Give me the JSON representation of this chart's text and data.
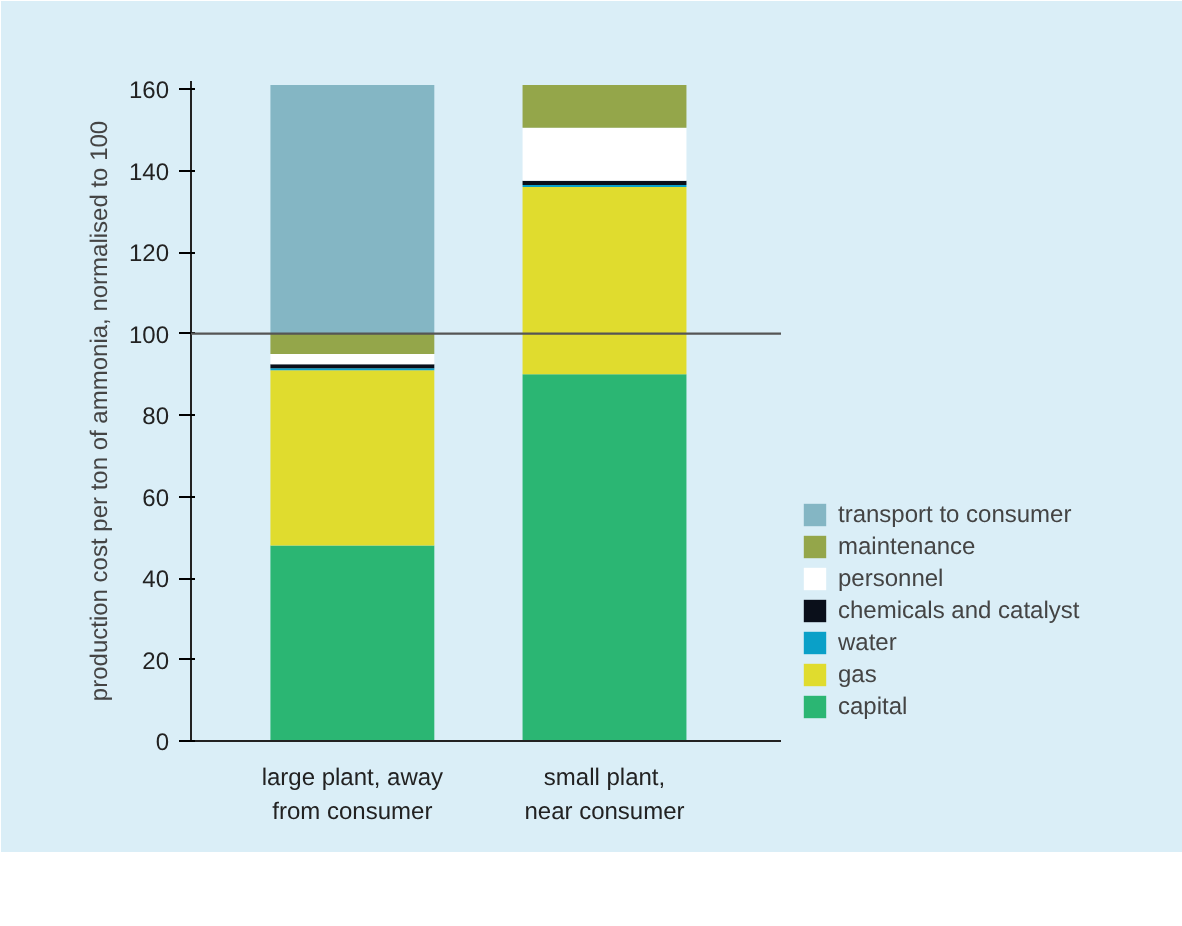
{
  "chart_data": {
    "type": "bar",
    "stacked": true,
    "ylabel": "production cost per ton of ammonia, normalised to 100",
    "categories": [
      "large plant, away\nfrom consumer",
      "small plant,\nnear consumer"
    ],
    "series": [
      {
        "name": "capital",
        "color": "#2bb673",
        "values": [
          48,
          90
        ]
      },
      {
        "name": "gas",
        "color": "#e0dc2e",
        "values": [
          43,
          46
        ]
      },
      {
        "name": "water",
        "color": "#0aa0c8",
        "values": [
          0.5,
          0.5
        ]
      },
      {
        "name": "chemicals and catalyst",
        "color": "#0a0f1a",
        "values": [
          1,
          1
        ]
      },
      {
        "name": "personnel",
        "color": "#ffffff",
        "values": [
          2.5,
          13
        ]
      },
      {
        "name": "maintenance",
        "color": "#94a64a",
        "values": [
          5,
          10.5
        ]
      },
      {
        "name": "transport to consumer",
        "color": "#84b6c4",
        "values": [
          61,
          0
        ]
      }
    ],
    "ylim": [
      0,
      162
    ],
    "yticks": [
      0,
      20,
      40,
      60,
      80,
      100,
      120,
      140,
      160
    ],
    "ref_lines": [
      {
        "axis": "y",
        "value": 100,
        "color": "#555555"
      }
    ],
    "grid": false,
    "legend": "right"
  }
}
